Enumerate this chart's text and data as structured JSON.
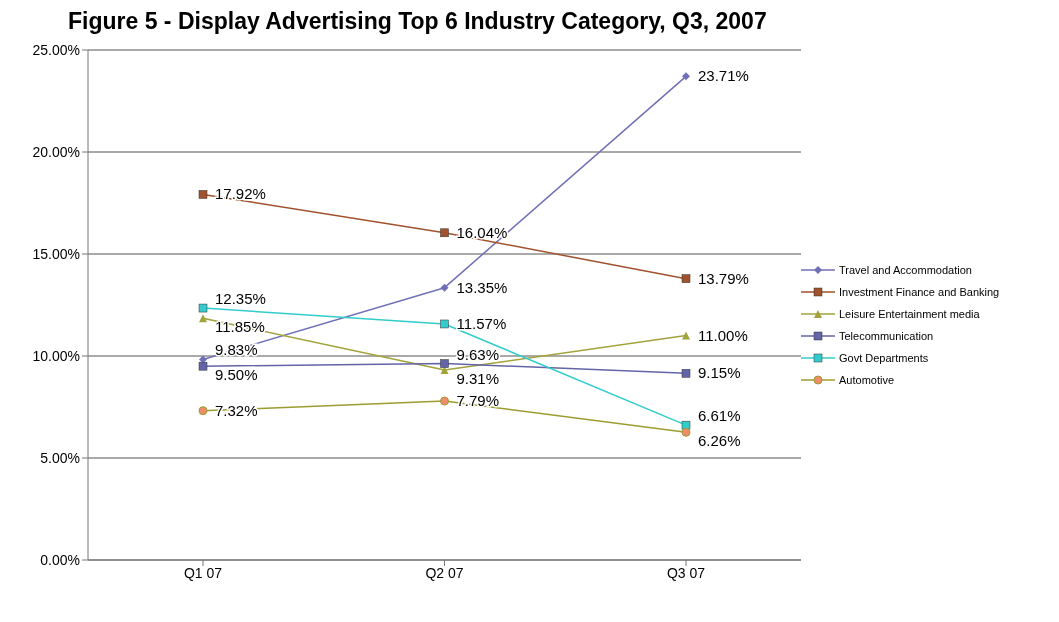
{
  "chart_data": {
    "type": "line",
    "title": "Figure 5 - Display Advertising Top 6 Industry Category, Q3, 2007",
    "categories": [
      "Q1 07",
      "Q2 07",
      "Q3 07"
    ],
    "series": [
      {
        "name": "Travel and Accommodation",
        "color": "#7070b8",
        "marker": "diamond",
        "values": [
          9.83,
          13.35,
          23.71
        ],
        "value_labels": [
          "9.83%",
          "13.35%",
          "23.71%"
        ]
      },
      {
        "name": "Investment Finance and Banking",
        "color": "#a0522d",
        "marker": "square",
        "values": [
          17.92,
          16.04,
          13.79
        ],
        "value_labels": [
          "17.92%",
          "16.04%",
          "13.79%"
        ]
      },
      {
        "name": "Leisure Entertainment media",
        "color": "#a3a33c",
        "marker": "triangle",
        "values": [
          11.85,
          9.31,
          11.0
        ],
        "value_labels": [
          "11.85%",
          "9.31%",
          "11.00%"
        ]
      },
      {
        "name": "Telecommunication",
        "color": "#6464a8",
        "marker": "square",
        "values": [
          9.5,
          9.63,
          9.15
        ],
        "value_labels": [
          "9.50%",
          "9.63%",
          "9.15%"
        ]
      },
      {
        "name": "Govt Departments",
        "color": "#33cccc",
        "marker": "square",
        "values": [
          12.35,
          11.57,
          6.61
        ],
        "value_labels": [
          "12.35%",
          "11.57%",
          "6.61%"
        ]
      },
      {
        "name": "Automotive",
        "color": "#9c9c30",
        "marker": "circle",
        "values": [
          7.32,
          7.79,
          6.26
        ],
        "value_labels": [
          "7.32%",
          "7.79%",
          "6.26%"
        ]
      }
    ],
    "ylim": [
      0,
      25
    ],
    "yticks": [
      {
        "value": 0,
        "label": "0.00%"
      },
      {
        "value": 5,
        "label": "5.00%"
      },
      {
        "value": 10,
        "label": "10.00%"
      },
      {
        "value": 15,
        "label": "15.00%"
      },
      {
        "value": 20,
        "label": "20.00%"
      },
      {
        "value": 25,
        "label": "25.00%"
      }
    ],
    "grid": "y",
    "legend": "right"
  }
}
